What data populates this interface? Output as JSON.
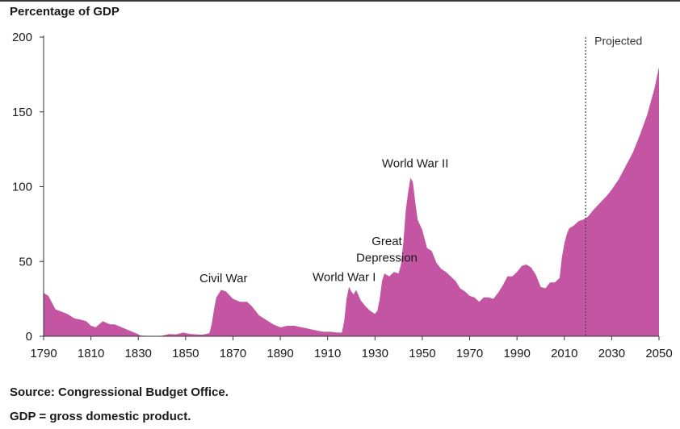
{
  "chart_data": {
    "type": "area",
    "title": "",
    "ylabel": "Percentage of GDP",
    "xlabel": "",
    "xlim": [
      1790,
      2050
    ],
    "ylim": [
      0,
      200
    ],
    "x_ticks": [
      "1790",
      "1810",
      "1830",
      "1850",
      "1870",
      "1890",
      "1910",
      "1930",
      "1950",
      "1970",
      "1990",
      "2010",
      "2030",
      "2050"
    ],
    "y_ticks": [
      "0",
      "50",
      "100",
      "150",
      "200"
    ],
    "grid": false,
    "legend": "none",
    "series_color": "#c455a2",
    "series": [
      {
        "name": "",
        "points": [
          [
            1790,
            29
          ],
          [
            1792,
            27
          ],
          [
            1795,
            18
          ],
          [
            1800,
            15
          ],
          [
            1803,
            12
          ],
          [
            1806,
            11
          ],
          [
            1808,
            10
          ],
          [
            1810,
            7
          ],
          [
            1812,
            6
          ],
          [
            1815,
            10
          ],
          [
            1818,
            8
          ],
          [
            1820,
            8
          ],
          [
            1823,
            6
          ],
          [
            1826,
            4
          ],
          [
            1829,
            2
          ],
          [
            1831,
            0.5
          ],
          [
            1835,
            0.1
          ],
          [
            1840,
            0.3
          ],
          [
            1843,
            1.5
          ],
          [
            1846,
            1.2
          ],
          [
            1849,
            2.5
          ],
          [
            1852,
            1.5
          ],
          [
            1857,
            1.0
          ],
          [
            1860,
            2
          ],
          [
            1861,
            8
          ],
          [
            1862,
            18
          ],
          [
            1863,
            26
          ],
          [
            1865,
            31
          ],
          [
            1867,
            30
          ],
          [
            1870,
            25
          ],
          [
            1873,
            23
          ],
          [
            1876,
            23
          ],
          [
            1878,
            20
          ],
          [
            1881,
            14
          ],
          [
            1884,
            11
          ],
          [
            1887,
            8
          ],
          [
            1890,
            6
          ],
          [
            1893,
            7
          ],
          [
            1896,
            7
          ],
          [
            1899,
            6
          ],
          [
            1902,
            5
          ],
          [
            1905,
            4
          ],
          [
            1908,
            3
          ],
          [
            1911,
            3
          ],
          [
            1914,
            2.5
          ],
          [
            1916,
            2.5
          ],
          [
            1917,
            10
          ],
          [
            1918,
            25
          ],
          [
            1919,
            33
          ],
          [
            1920,
            30
          ],
          [
            1921,
            28
          ],
          [
            1922,
            31
          ],
          [
            1924,
            24
          ],
          [
            1926,
            20
          ],
          [
            1928,
            17
          ],
          [
            1930,
            15
          ],
          [
            1931,
            17
          ],
          [
            1932,
            25
          ],
          [
            1933,
            37
          ],
          [
            1934,
            42
          ],
          [
            1936,
            40
          ],
          [
            1938,
            43
          ],
          [
            1940,
            42
          ],
          [
            1941,
            48
          ],
          [
            1942,
            63
          ],
          [
            1943,
            84
          ],
          [
            1944,
            96
          ],
          [
            1945,
            106
          ],
          [
            1946,
            103
          ],
          [
            1947,
            90
          ],
          [
            1948,
            78
          ],
          [
            1950,
            71
          ],
          [
            1952,
            59
          ],
          [
            1954,
            57
          ],
          [
            1956,
            49
          ],
          [
            1958,
            45
          ],
          [
            1960,
            43
          ],
          [
            1962,
            40
          ],
          [
            1964,
            37
          ],
          [
            1966,
            32
          ],
          [
            1968,
            30
          ],
          [
            1970,
            27
          ],
          [
            1972,
            26
          ],
          [
            1974,
            23
          ],
          [
            1976,
            26
          ],
          [
            1978,
            26
          ],
          [
            1980,
            25
          ],
          [
            1982,
            29
          ],
          [
            1984,
            34
          ],
          [
            1986,
            40
          ],
          [
            1988,
            40
          ],
          [
            1990,
            43
          ],
          [
            1992,
            47
          ],
          [
            1994,
            48
          ],
          [
            1996,
            46
          ],
          [
            1998,
            41
          ],
          [
            2000,
            33
          ],
          [
            2002,
            32
          ],
          [
            2004,
            36
          ],
          [
            2006,
            36
          ],
          [
            2008,
            39
          ],
          [
            2009,
            53
          ],
          [
            2010,
            62
          ],
          [
            2011,
            68
          ],
          [
            2012,
            72
          ],
          [
            2014,
            74
          ],
          [
            2016,
            77
          ],
          [
            2018,
            78
          ],
          [
            2020,
            80
          ],
          [
            2022,
            84
          ],
          [
            2025,
            89
          ],
          [
            2028,
            94
          ],
          [
            2030,
            98
          ],
          [
            2033,
            105
          ],
          [
            2036,
            114
          ],
          [
            2039,
            123
          ],
          [
            2042,
            135
          ],
          [
            2045,
            148
          ],
          [
            2048,
            165
          ],
          [
            2050,
            180
          ]
        ]
      }
    ],
    "projection_start": 2019,
    "projection_label": "Projected",
    "annotations": [
      {
        "id": "civil-war",
        "text": "Civil War",
        "x": 1866,
        "y": 36
      },
      {
        "id": "world-war-1",
        "text": "World War I",
        "x": 1917,
        "y": 37
      },
      {
        "id": "great-depression-1",
        "text": "Great",
        "x": 1935,
        "y": 61
      },
      {
        "id": "great-depression-2",
        "text": "Depression",
        "x": 1935,
        "y": 50
      },
      {
        "id": "world-war-2",
        "text": "World War II",
        "x": 1947,
        "y": 113
      }
    ]
  },
  "notes": {
    "source": "Source: Congressional Budget Office.",
    "definition": "GDP = gross domestic product."
  }
}
